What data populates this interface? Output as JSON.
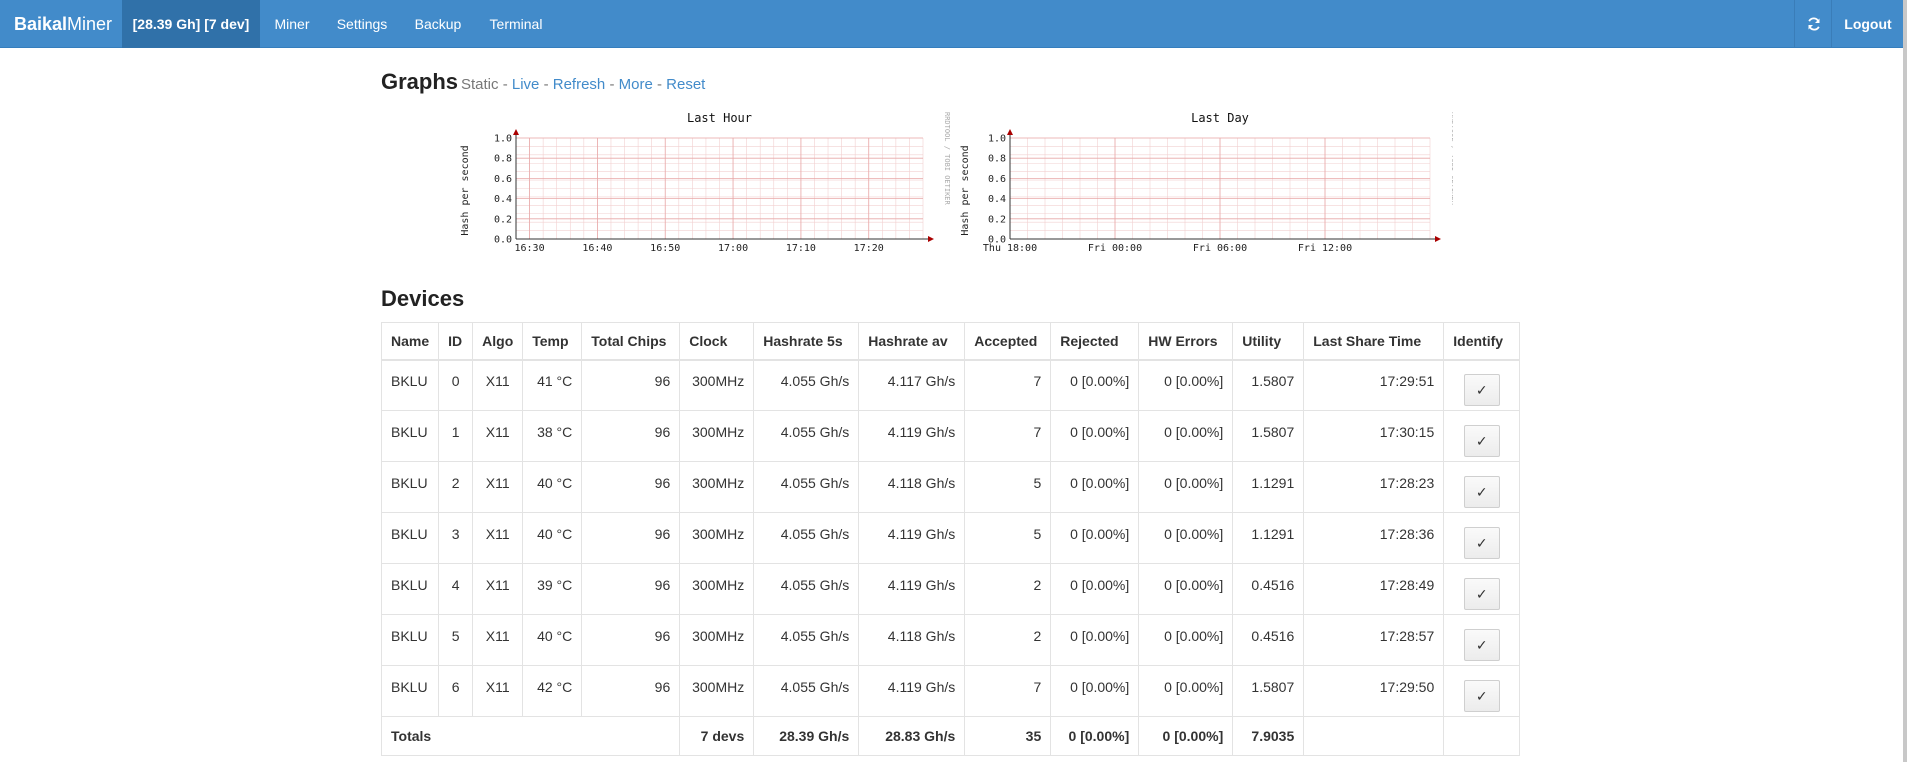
{
  "nav": {
    "brand_bold": "Baikal",
    "brand_rest": "Miner",
    "status": "[28.39 Gh] [7 dev]",
    "items": [
      "Miner",
      "Settings",
      "Backup",
      "Terminal"
    ],
    "refresh_icon": "refresh-icon",
    "logout": "Logout"
  },
  "graphs": {
    "title": "Graphs",
    "static": "Static",
    "sep": "-",
    "links": [
      "Live",
      "Refresh",
      "More",
      "Reset"
    ],
    "charts": [
      {
        "title": "Last Hour",
        "ylabel": "Hash per second",
        "yticks": [
          "1.0",
          "0.8",
          "0.6",
          "0.4",
          "0.2",
          "0.0"
        ],
        "xticks": [
          "16:30",
          "16:40",
          "16:50",
          "17:00",
          "17:10",
          "17:20"
        ],
        "side_label": "RRDTOOL / TOBI OETIKER"
      },
      {
        "title": "Last Day",
        "ylabel": "Hash per second",
        "yticks": [
          "1.0",
          "0.8",
          "0.6",
          "0.4",
          "0.2",
          "0.0"
        ],
        "xticks": [
          "Thu 18:00",
          "Fri 00:00",
          "Fri 06:00",
          "Fri 12:00"
        ],
        "side_label": "RRDTOOL / TOBI OETIKER"
      }
    ]
  },
  "devices": {
    "title": "Devices",
    "columns": [
      "Name",
      "ID",
      "Algo",
      "Temp",
      "Total Chips",
      "Clock",
      "Hashrate 5s",
      "Hashrate av",
      "Accepted",
      "Rejected",
      "HW Errors",
      "Utility",
      "Last Share Time",
      "Identify"
    ],
    "rows": [
      [
        "BKLU",
        "0",
        "X11",
        "41 °C",
        "96",
        "300MHz",
        "4.055 Gh/s",
        "4.117 Gh/s",
        "7",
        "0 [0.00%]",
        "0 [0.00%]",
        "1.5807",
        "17:29:51",
        "✓"
      ],
      [
        "BKLU",
        "1",
        "X11",
        "38 °C",
        "96",
        "300MHz",
        "4.055 Gh/s",
        "4.119 Gh/s",
        "7",
        "0 [0.00%]",
        "0 [0.00%]",
        "1.5807",
        "17:30:15",
        "✓"
      ],
      [
        "BKLU",
        "2",
        "X11",
        "40 °C",
        "96",
        "300MHz",
        "4.055 Gh/s",
        "4.118 Gh/s",
        "5",
        "0 [0.00%]",
        "0 [0.00%]",
        "1.1291",
        "17:28:23",
        "✓"
      ],
      [
        "BKLU",
        "3",
        "X11",
        "40 °C",
        "96",
        "300MHz",
        "4.055 Gh/s",
        "4.119 Gh/s",
        "5",
        "0 [0.00%]",
        "0 [0.00%]",
        "1.1291",
        "17:28:36",
        "✓"
      ],
      [
        "BKLU",
        "4",
        "X11",
        "39 °C",
        "96",
        "300MHz",
        "4.055 Gh/s",
        "4.119 Gh/s",
        "2",
        "0 [0.00%]",
        "0 [0.00%]",
        "0.4516",
        "17:28:49",
        "✓"
      ],
      [
        "BKLU",
        "5",
        "X11",
        "40 °C",
        "96",
        "300MHz",
        "4.055 Gh/s",
        "4.118 Gh/s",
        "2",
        "0 [0.00%]",
        "0 [0.00%]",
        "0.4516",
        "17:28:57",
        "✓"
      ],
      [
        "BKLU",
        "6",
        "X11",
        "42 °C",
        "96",
        "300MHz",
        "4.055 Gh/s",
        "4.119 Gh/s",
        "7",
        "0 [0.00%]",
        "0 [0.00%]",
        "1.5807",
        "17:29:50",
        "✓"
      ]
    ],
    "totals": {
      "label": "Totals",
      "devs": "7 devs",
      "hashrate_5s": "28.39 Gh/s",
      "hashrate_av": "28.83 Gh/s",
      "accepted": "35",
      "rejected": "0 [0.00%]",
      "hw_errors": "0 [0.00%]",
      "utility": "7.9035"
    }
  }
}
